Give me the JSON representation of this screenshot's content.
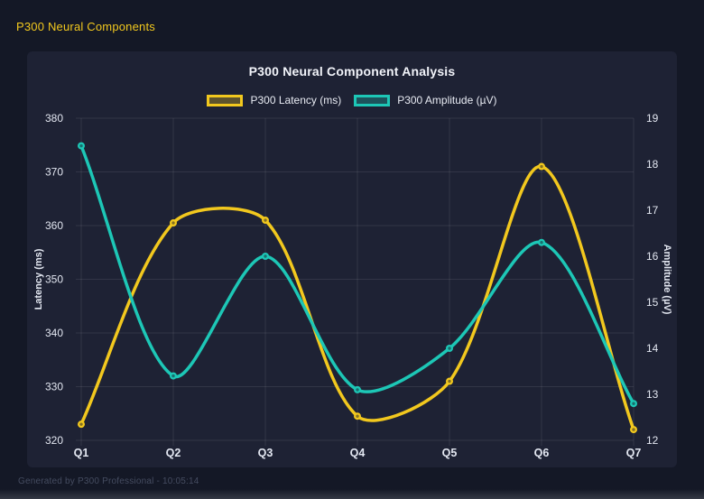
{
  "page": {
    "header_title": "P300 Neural Components",
    "footer_text": "Generated by P300 Professional - 10:05:14"
  },
  "colors": {
    "background": "#141826",
    "card": "#1e2234",
    "accent_yellow": "#f2c81e",
    "accent_teal": "#1dc7b6",
    "grid": "rgba(255,255,255,0.09)",
    "tick_text": "#e3e7f1",
    "title_text": "#f2f4fa"
  },
  "chart_data": {
    "type": "line",
    "title": "P300 Neural Component Analysis",
    "categories": [
      "Q1",
      "Q2",
      "Q3",
      "Q4",
      "Q5",
      "Q6",
      "Q7"
    ],
    "series": [
      {
        "name": "P300 Latency (ms)",
        "axis": "left",
        "color": "#f2c81e",
        "values": [
          323,
          360.5,
          361,
          324.5,
          331,
          371,
          322
        ]
      },
      {
        "name": "P300 Amplitude (µV)",
        "axis": "right",
        "color": "#1dc7b6",
        "values": [
          18.4,
          13.4,
          16.0,
          13.1,
          14.0,
          16.3,
          12.8
        ]
      }
    ],
    "left_axis": {
      "label": "Latency (ms)",
      "min": 320,
      "max": 380,
      "step": 10
    },
    "right_axis": {
      "label": "Amplitude (µV)",
      "min": 12,
      "max": 19,
      "step": 1
    },
    "grid": true,
    "legend_position": "top",
    "line_tension": 0.3,
    "smooth": true,
    "point_markers": true
  }
}
